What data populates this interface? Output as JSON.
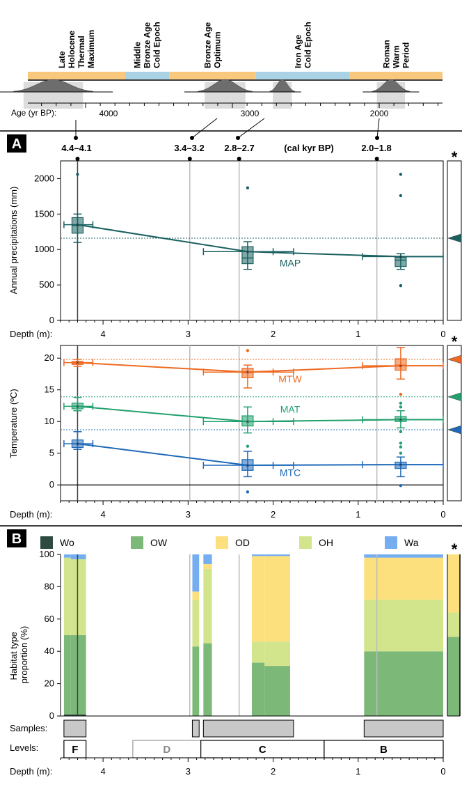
{
  "timeline": {
    "periods": [
      {
        "label": "Late Holocene Thermal Maximum",
        "lines": [
          "Late",
          "Holocene",
          "Thermal",
          "Maximum"
        ],
        "start": 4580,
        "end": 3730,
        "color": "#f8c87c"
      },
      {
        "label": "Middle Bronze Age Cold Epoch",
        "lines": [
          "Middle",
          "Bronze Age",
          "Cold Epoch"
        ],
        "start": 3730,
        "end": 3430,
        "color": "#a9d2e4"
      },
      {
        "label": "Bronze Age Optimum",
        "lines": [
          "Bronze Age",
          "Optimum"
        ],
        "start": 3430,
        "end": 2840,
        "color": "#f8c87c"
      },
      {
        "label": "Iron Age Cold Epoch",
        "lines": [
          "Iron Age",
          "Cold Epoch"
        ],
        "start": 2840,
        "end": 2200,
        "color": "#a9d2e4"
      },
      {
        "label": "Roman Warm Period",
        "lines": [
          "Roman",
          "Warm",
          "Period"
        ],
        "start": 2200,
        "end": 1000,
        "color": "#f8c87c"
      }
    ],
    "age_axis_label": "Age (yr BP):",
    "age_ticks": [
      4000,
      3000,
      2000
    ],
    "date_labels": [
      "4.4–4.1",
      "3.4–3.2",
      "2.8–2.7",
      "2.0–1.8"
    ],
    "unit_label": "(cal kyr BP)"
  },
  "panels": {
    "a_label": "A",
    "b_label": "B",
    "star": "*"
  },
  "depth_axis_label": "Depth (m):",
  "chart_data": [
    {
      "type": "line",
      "panel": "A (precipitation)",
      "ylabel": "Annual precipitations (mm)",
      "xlabel": "Depth (m):",
      "xlim": [
        4.5,
        0
      ],
      "ylim": [
        0,
        2250
      ],
      "x_ticks": [
        4,
        3,
        2,
        1,
        0
      ],
      "y_ticks": [
        0,
        500,
        1000,
        1500,
        2000
      ],
      "modern_value": 1160,
      "series": [
        {
          "name": "MAP",
          "color": "#1a6060",
          "points": [
            {
              "x": 4.3,
              "y": 1350
            },
            {
              "x": 2.3,
              "y": 970
            },
            {
              "x": 0.5,
              "y": 900
            }
          ],
          "extend_to": 0,
          "boxes": [
            {
              "x": 4.3,
              "min": 1100,
              "q1": 1230,
              "median": 1340,
              "q3": 1450,
              "max": 1500,
              "mean": 1350,
              "outliers": [
                2060
              ]
            },
            {
              "x": 2.3,
              "min": 720,
              "q1": 800,
              "median": 880,
              "q3": 1040,
              "max": 1110,
              "mean": 970,
              "outliers": [
                1870
              ]
            },
            {
              "x": 0.5,
              "min": 720,
              "q1": 760,
              "median": 850,
              "q3": 890,
              "max": 940,
              "mean": 900,
              "outliers": [
                2060,
                1760,
                490
              ]
            }
          ]
        }
      ]
    },
    {
      "type": "line",
      "panel": "A (temperature)",
      "ylabel": "Temperature (ºC)",
      "xlabel": "Depth (m):",
      "xlim": [
        4.5,
        0
      ],
      "ylim": [
        -2.5,
        22
      ],
      "x_ticks": [
        4,
        3,
        2,
        1,
        0
      ],
      "y_ticks": [
        0,
        5,
        10,
        15,
        20
      ],
      "series": [
        {
          "name": "MTW",
          "color": "#ee6a22",
          "modern_value": 19.8,
          "extend_to": 0,
          "points": [
            {
              "x": 4.3,
              "y": 19.3
            },
            {
              "x": 2.3,
              "y": 17.8
            },
            {
              "x": 0.5,
              "y": 18.8
            }
          ],
          "boxes": [
            {
              "x": 4.3,
              "min": 18.7,
              "q1": 19.0,
              "median": 19.2,
              "q3": 19.5,
              "max": 19.8,
              "mean": 19.3,
              "outliers": []
            },
            {
              "x": 2.3,
              "min": 15.3,
              "q1": 16.9,
              "median": 17.7,
              "q3": 18.4,
              "max": 18.9,
              "mean": 17.8,
              "outliers": [
                21.2
              ]
            },
            {
              "x": 0.5,
              "min": 16.7,
              "q1": 18.1,
              "median": 18.9,
              "q3": 19.9,
              "max": 21.7,
              "mean": 18.8,
              "outliers": [
                14.3
              ]
            }
          ]
        },
        {
          "name": "MAT",
          "color": "#22a06e",
          "modern_value": 13.9,
          "extend_to": 0,
          "points": [
            {
              "x": 4.3,
              "y": 12.4
            },
            {
              "x": 2.3,
              "y": 10.0
            },
            {
              "x": 0.5,
              "y": 10.3
            }
          ],
          "boxes": [
            {
              "x": 4.3,
              "min": 11.7,
              "q1": 12.0,
              "median": 12.4,
              "q3": 12.9,
              "max": 13.8,
              "mean": 12.4,
              "outliers": []
            },
            {
              "x": 2.3,
              "min": 8.2,
              "q1": 9.3,
              "median": 10.0,
              "q3": 10.9,
              "max": 12.3,
              "mean": 10.0,
              "outliers": [
                6.1
              ]
            },
            {
              "x": 0.5,
              "min": 9.0,
              "q1": 10.0,
              "median": 10.4,
              "q3": 10.8,
              "max": 11.7,
              "mean": 10.3,
              "outliers": [
                12.9,
                12.3,
                8.4,
                6.6,
                6.0,
                5.0
              ]
            }
          ]
        },
        {
          "name": "MTC",
          "color": "#1f69b8",
          "modern_value": 8.7,
          "extend_to": 0,
          "points": [
            {
              "x": 4.3,
              "y": 6.5
            },
            {
              "x": 2.3,
              "y": 3.1
            },
            {
              "x": 0.5,
              "y": 3.2
            }
          ],
          "boxes": [
            {
              "x": 4.3,
              "min": 5.6,
              "q1": 5.9,
              "median": 6.5,
              "q3": 7.1,
              "max": 8.4,
              "mean": 6.5,
              "outliers": []
            },
            {
              "x": 2.3,
              "min": 1.3,
              "q1": 2.3,
              "median": 3.1,
              "q3": 4.0,
              "max": 5.3,
              "mean": 3.1,
              "outliers": [
                -1.1
              ]
            },
            {
              "x": 0.5,
              "min": 1.3,
              "q1": 2.6,
              "median": 3.2,
              "q3": 3.6,
              "max": 4.4,
              "mean": 3.2,
              "outliers": [
                -0.1
              ]
            }
          ]
        }
      ]
    },
    {
      "type": "area",
      "panel": "B",
      "ylabel": "Habitat type proportion (%)",
      "xlabel": "Depth (m):",
      "xlim": [
        4.5,
        0
      ],
      "ylim": [
        0,
        100
      ],
      "x_ticks": [
        4,
        3,
        2,
        1,
        0
      ],
      "y_ticks": [
        0,
        20,
        40,
        60,
        80,
        100
      ],
      "legend": [
        {
          "name": "Wo",
          "color": "#2f4a40"
        },
        {
          "name": "OW",
          "color": "#7cb878"
        },
        {
          "name": "OD",
          "color": "#fbe07d"
        },
        {
          "name": "OH",
          "color": "#d3e58c"
        },
        {
          "name": "Wa",
          "color": "#74aef0"
        }
      ],
      "blocks": [
        {
          "from": 4.46,
          "to": 4.38,
          "Wo": 1,
          "OW": 49,
          "OD": 0,
          "OH": 48,
          "Wa": 2
        },
        {
          "from": 4.38,
          "to": 4.2,
          "Wo": 1,
          "OW": 49,
          "OD": 0,
          "OH": 47,
          "Wa": 3
        },
        {
          "from": 2.95,
          "to": 2.87,
          "Wo": 0,
          "OW": 43,
          "OD": 5,
          "OH": 29,
          "Wa": 23
        },
        {
          "from": 2.82,
          "to": 2.72,
          "Wo": 0,
          "OW": 45,
          "OD": 3,
          "OH": 46,
          "Wa": 6
        },
        {
          "from": 2.25,
          "to": 2.1,
          "Wo": 0,
          "OW": 33,
          "OD": 53,
          "OH": 13,
          "Wa": 1
        },
        {
          "from": 2.1,
          "to": 1.8,
          "Wo": 0,
          "OW": 31,
          "OD": 53,
          "OH": 15,
          "Wa": 1
        },
        {
          "from": 0.93,
          "to": 0.0,
          "Wo": 0,
          "OW": 40,
          "OD": 26,
          "OH": 32,
          "Wa": 2
        }
      ],
      "modern": {
        "Wo": 0,
        "OW": 49,
        "OD": 36,
        "OH": 15,
        "Wa": 0
      }
    }
  ],
  "samples": {
    "label": "Samples:",
    "ranges": [
      [
        4.46,
        4.2
      ],
      [
        2.95,
        2.87
      ],
      [
        2.82,
        1.76
      ],
      [
        0.93,
        0.0
      ]
    ]
  },
  "levels": {
    "label": "Levels:",
    "items": [
      {
        "name": "F",
        "from": 4.46,
        "to": 4.2,
        "color": "#000000"
      },
      {
        "name": "D",
        "from": 3.65,
        "to": 2.85,
        "color": "#999999"
      },
      {
        "name": "C",
        "from": 2.85,
        "to": 1.4,
        "color": "#000000"
      },
      {
        "name": "B",
        "from": 1.4,
        "to": 0.0,
        "color": "#000000"
      }
    ]
  },
  "correlation_lines": [
    4.3,
    2.98,
    2.4,
    0.78
  ]
}
